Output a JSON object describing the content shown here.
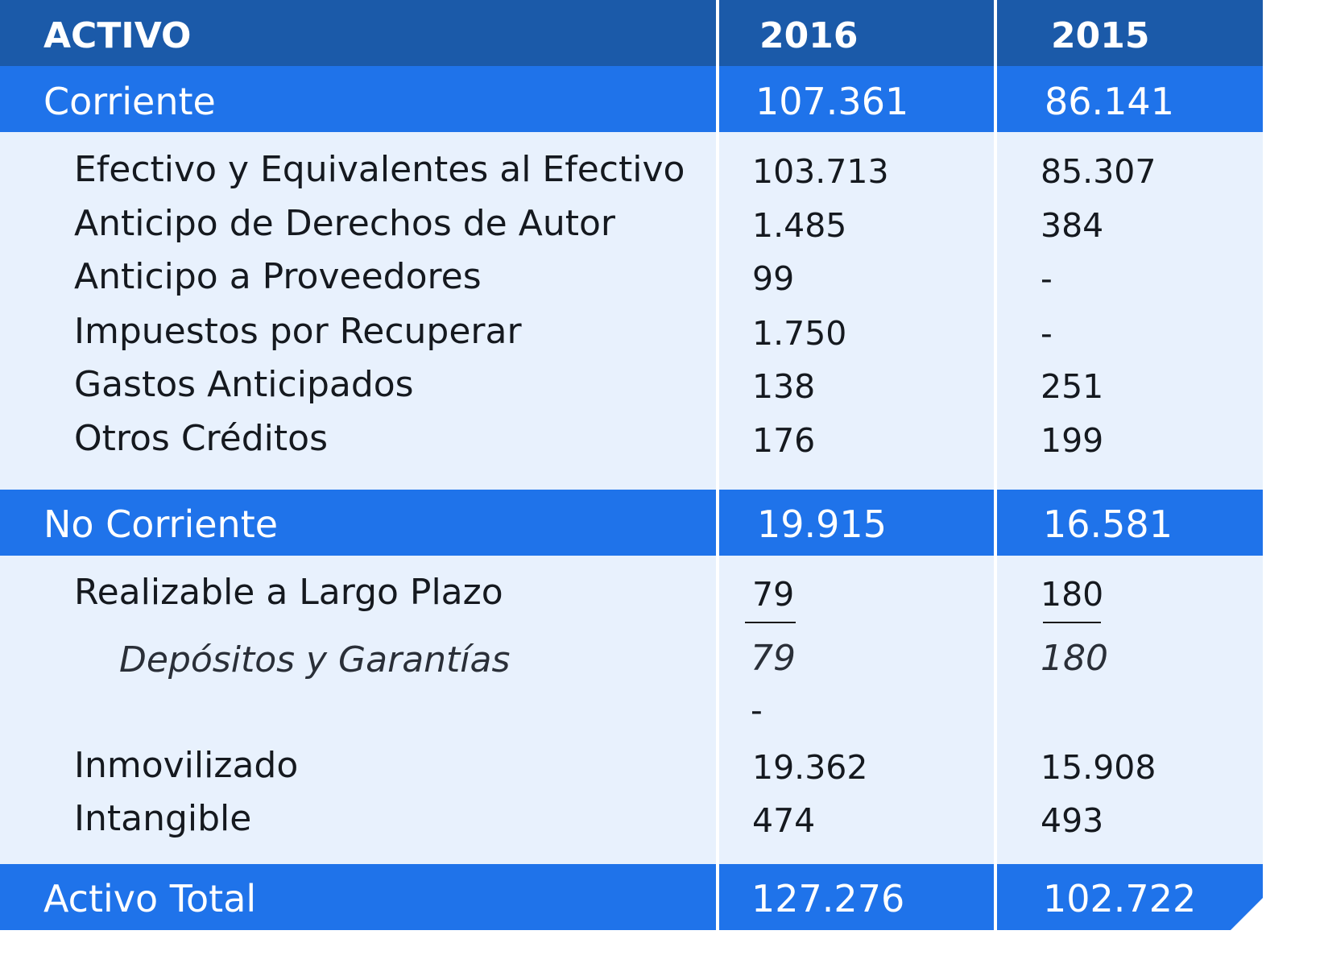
{
  "header": {
    "label": "ACTIVO",
    "year1": "2016",
    "year2": "2015"
  },
  "corriente": {
    "label": "Corriente",
    "v2016": "107.361",
    "v2015": "86.141",
    "items": [
      {
        "label": "Efectivo y Equivalentes al Efectivo",
        "v2016": "103.713",
        "v2015": "85.307"
      },
      {
        "label": "Anticipo de Derechos de Autor",
        "v2016": "1.485",
        "v2015": "384"
      },
      {
        "label": "Anticipo a Proveedores",
        "v2016": "99",
        "v2015": "-"
      },
      {
        "label": "Impuestos por Recuperar",
        "v2016": "1.750",
        "v2015": "-"
      },
      {
        "label": "Gastos Anticipados",
        "v2016": "138",
        "v2015": "251"
      },
      {
        "label": "Otros Créditos",
        "v2016": "176",
        "v2015": "199"
      }
    ]
  },
  "no_corriente": {
    "label": "No Corriente",
    "v2016": "19.915",
    "v2015": "16.581",
    "realizable": {
      "label": "Realizable a Largo Plazo",
      "v2016": "79",
      "v2015": "180"
    },
    "depositos": {
      "label": "Depósitos y Garantías",
      "v2016": "79",
      "v2015": "180"
    },
    "dash_2016": "-",
    "inmovilizado": {
      "label": "Inmovilizado",
      "v2016": "19.362",
      "v2015": "15.908"
    },
    "intangible": {
      "label": "Intangible",
      "v2016": "474",
      "v2015": "493"
    }
  },
  "total": {
    "label": "Activo Total",
    "v2016": "127.276",
    "v2015": "102.722"
  }
}
